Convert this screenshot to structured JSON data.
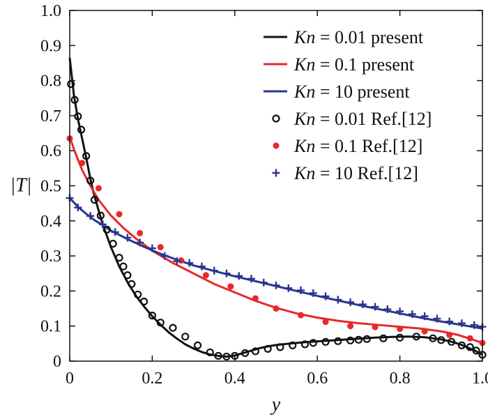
{
  "chart_data": {
    "type": "line",
    "xlabel": "y",
    "ylabel": "|T|",
    "xlim": [
      0,
      1.0
    ],
    "ylim": [
      0,
      1.0
    ],
    "x_ticks": [
      0,
      0.2,
      0.4,
      0.6,
      0.8,
      1.0
    ],
    "x_tick_labels": [
      "0",
      "0.2",
      "0.4",
      "0.6",
      "0.8",
      "1.0"
    ],
    "y_ticks": [
      0,
      0.1,
      0.2,
      0.3,
      0.4,
      0.5,
      0.6,
      0.7,
      0.8,
      0.9,
      1.0
    ],
    "y_tick_labels": [
      "0",
      "0.1",
      "0.2",
      "0.3",
      "0.4",
      "0.5",
      "0.6",
      "0.7",
      "0.8",
      "0.9",
      "1.0"
    ],
    "grid": false,
    "legend_position": "top-right",
    "legend": [
      {
        "prefix": "Kn",
        "text": " = 0.01 present",
        "color": "#111111",
        "marker": "line"
      },
      {
        "prefix": "Kn",
        "text": " = 0.1 present",
        "color": "#e8282a",
        "marker": "line"
      },
      {
        "prefix": "Kn",
        "text": " = 10 present",
        "color": "#2a3590",
        "marker": "line"
      },
      {
        "prefix": "Kn",
        "text": " = 0.01 Ref.[12]",
        "color": "#111111",
        "marker": "circle"
      },
      {
        "prefix": "Kn",
        "text": " = 0.1 Ref.[12]",
        "color": "#e8282a",
        "marker": "dot"
      },
      {
        "prefix": "Kn",
        "text": " = 10 Ref.[12]",
        "color": "#2a3590",
        "marker": "plus"
      }
    ],
    "series": [
      {
        "name": "Kn = 0.01 present",
        "style": "line",
        "color": "#111111",
        "x": [
          0,
          0.01,
          0.02,
          0.03,
          0.04,
          0.05,
          0.06,
          0.08,
          0.1,
          0.12,
          0.14,
          0.16,
          0.18,
          0.2,
          0.22,
          0.24,
          0.26,
          0.28,
          0.3,
          0.32,
          0.34,
          0.36,
          0.38,
          0.4,
          0.42,
          0.44,
          0.46,
          0.48,
          0.5,
          0.54,
          0.58,
          0.62,
          0.66,
          0.7,
          0.74,
          0.78,
          0.82,
          0.86,
          0.9,
          0.93,
          0.95,
          0.97,
          0.985,
          1.0
        ],
        "y": [
          0.865,
          0.76,
          0.69,
          0.635,
          0.58,
          0.52,
          0.47,
          0.39,
          0.325,
          0.27,
          0.225,
          0.187,
          0.156,
          0.128,
          0.104,
          0.082,
          0.064,
          0.048,
          0.036,
          0.026,
          0.019,
          0.015,
          0.013,
          0.016,
          0.023,
          0.03,
          0.037,
          0.042,
          0.046,
          0.051,
          0.055,
          0.058,
          0.061,
          0.064,
          0.067,
          0.069,
          0.07,
          0.068,
          0.062,
          0.054,
          0.046,
          0.036,
          0.028,
          0.018
        ]
      },
      {
        "name": "Kn = 0.1 present",
        "style": "line",
        "color": "#e8282a",
        "x": [
          0,
          0.01,
          0.02,
          0.03,
          0.05,
          0.07,
          0.1,
          0.13,
          0.16,
          0.2,
          0.25,
          0.3,
          0.35,
          0.4,
          0.45,
          0.5,
          0.55,
          0.6,
          0.65,
          0.7,
          0.75,
          0.8,
          0.85,
          0.9,
          0.94,
          0.97,
          1.0
        ],
        "y": [
          0.64,
          0.605,
          0.575,
          0.545,
          0.5,
          0.46,
          0.415,
          0.38,
          0.35,
          0.315,
          0.28,
          0.25,
          0.22,
          0.196,
          0.172,
          0.152,
          0.136,
          0.124,
          0.115,
          0.108,
          0.103,
          0.098,
          0.093,
          0.085,
          0.075,
          0.064,
          0.052
        ]
      },
      {
        "name": "Kn = 10 present",
        "style": "line",
        "color": "#2a3590",
        "x": [
          0,
          0.02,
          0.04,
          0.06,
          0.08,
          0.1,
          0.14,
          0.18,
          0.22,
          0.26,
          0.3,
          0.35,
          0.4,
          0.45,
          0.5,
          0.55,
          0.6,
          0.65,
          0.7,
          0.75,
          0.8,
          0.85,
          0.9,
          0.95,
          1.0
        ],
        "y": [
          0.465,
          0.44,
          0.42,
          0.402,
          0.388,
          0.372,
          0.348,
          0.326,
          0.306,
          0.289,
          0.273,
          0.257,
          0.242,
          0.228,
          0.214,
          0.2,
          0.186,
          0.173,
          0.16,
          0.148,
          0.136,
          0.124,
          0.113,
          0.103,
          0.093
        ]
      },
      {
        "name": "Kn = 0.01 Ref.[12]",
        "style": "circle",
        "color": "#111111",
        "x": [
          0.003,
          0.012,
          0.02,
          0.028,
          0.04,
          0.05,
          0.06,
          0.075,
          0.09,
          0.105,
          0.12,
          0.13,
          0.14,
          0.15,
          0.165,
          0.18,
          0.2,
          0.22,
          0.25,
          0.28,
          0.31,
          0.34,
          0.36,
          0.38,
          0.4,
          0.425,
          0.45,
          0.48,
          0.51,
          0.54,
          0.57,
          0.59,
          0.62,
          0.65,
          0.68,
          0.7,
          0.72,
          0.76,
          0.8,
          0.84,
          0.88,
          0.9,
          0.925,
          0.95,
          0.97,
          0.985,
          1.0
        ],
        "y": [
          0.79,
          0.745,
          0.698,
          0.66,
          0.585,
          0.515,
          0.46,
          0.415,
          0.375,
          0.335,
          0.295,
          0.27,
          0.245,
          0.22,
          0.19,
          0.17,
          0.13,
          0.11,
          0.095,
          0.07,
          0.045,
          0.025,
          0.015,
          0.013,
          0.015,
          0.023,
          0.028,
          0.035,
          0.04,
          0.045,
          0.048,
          0.052,
          0.055,
          0.057,
          0.059,
          0.061,
          0.063,
          0.065,
          0.067,
          0.07,
          0.065,
          0.06,
          0.055,
          0.045,
          0.04,
          0.03,
          0.018
        ]
      },
      {
        "name": "Kn = 0.1 Ref.[12]",
        "style": "dot",
        "color": "#e8282a",
        "x": [
          0.0,
          0.03,
          0.07,
          0.12,
          0.17,
          0.22,
          0.27,
          0.33,
          0.39,
          0.45,
          0.5,
          0.56,
          0.62,
          0.68,
          0.74,
          0.8,
          0.86,
          0.92,
          0.97,
          1.0
        ],
        "y": [
          0.635,
          0.565,
          0.493,
          0.419,
          0.365,
          0.325,
          0.287,
          0.245,
          0.213,
          0.179,
          0.15,
          0.131,
          0.112,
          0.1,
          0.097,
          0.092,
          0.085,
          0.075,
          0.065,
          0.052
        ]
      },
      {
        "name": "Kn = 10 Ref.[12]",
        "style": "plus",
        "color": "#2a3590",
        "x": [
          0.0,
          0.02,
          0.05,
          0.08,
          0.11,
          0.14,
          0.17,
          0.2,
          0.23,
          0.26,
          0.29,
          0.32,
          0.35,
          0.38,
          0.41,
          0.44,
          0.47,
          0.5,
          0.53,
          0.56,
          0.59,
          0.62,
          0.65,
          0.68,
          0.71,
          0.74,
          0.77,
          0.8,
          0.83,
          0.86,
          0.89,
          0.92,
          0.95,
          0.98,
          1.0
        ],
        "y": [
          0.465,
          0.438,
          0.414,
          0.39,
          0.368,
          0.352,
          0.338,
          0.322,
          0.3,
          0.285,
          0.28,
          0.27,
          0.258,
          0.25,
          0.243,
          0.235,
          0.224,
          0.216,
          0.208,
          0.202,
          0.194,
          0.185,
          0.175,
          0.168,
          0.162,
          0.155,
          0.148,
          0.142,
          0.134,
          0.128,
          0.121,
          0.113,
          0.108,
          0.103,
          0.098
        ]
      }
    ]
  }
}
